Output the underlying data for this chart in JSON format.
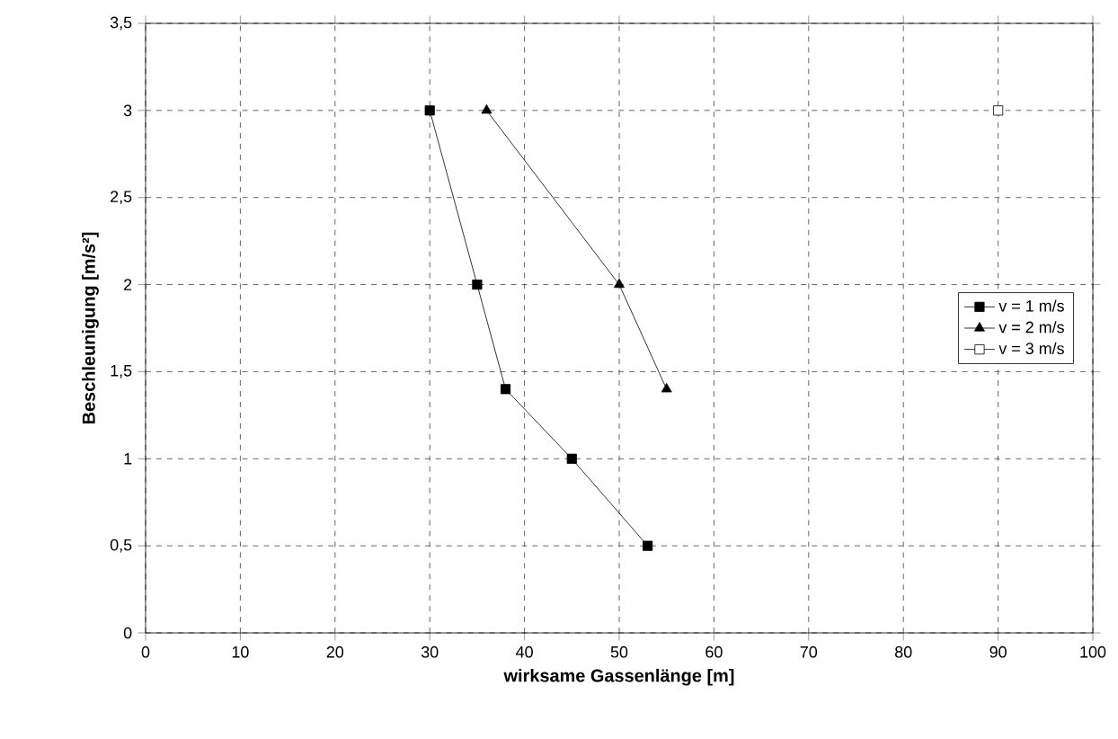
{
  "chart_data": {
    "type": "line",
    "xlabel": "wirksame Gassenlänge  [m]",
    "ylabel": "Beschleunigung [m/s²]",
    "xlim": [
      0,
      100
    ],
    "xticks": [
      0,
      10,
      20,
      30,
      40,
      50,
      60,
      70,
      80,
      90,
      100
    ],
    "ylim": [
      0,
      3.5
    ],
    "yticks": [
      {
        "value": 0,
        "label": "0"
      },
      {
        "value": 0.5,
        "label": "0,5"
      },
      {
        "value": 1,
        "label": "1"
      },
      {
        "value": 1.5,
        "label": "1,5"
      },
      {
        "value": 2,
        "label": "2"
      },
      {
        "value": 2.5,
        "label": "2,5"
      },
      {
        "value": 3,
        "label": "3"
      },
      {
        "value": 3.5,
        "label": "3,5"
      }
    ],
    "grid": true,
    "legend": "right",
    "line_style": "solid",
    "series": [
      {
        "name": "v = 1 m/s",
        "color": "#000000",
        "marker": "square",
        "x": [
          30,
          35,
          38,
          45,
          53
        ],
        "values": [
          3,
          2,
          1.4,
          1,
          0.5
        ]
      },
      {
        "name": "v = 2 m/s",
        "color": "#000000",
        "marker": "triangle",
        "x": [
          36,
          50,
          55
        ],
        "values": [
          3,
          2,
          1.4
        ]
      },
      {
        "name": "v = 3 m/s",
        "color": "#ffffff",
        "marker": "square",
        "x": [
          90
        ],
        "values": [
          3
        ]
      }
    ]
  }
}
